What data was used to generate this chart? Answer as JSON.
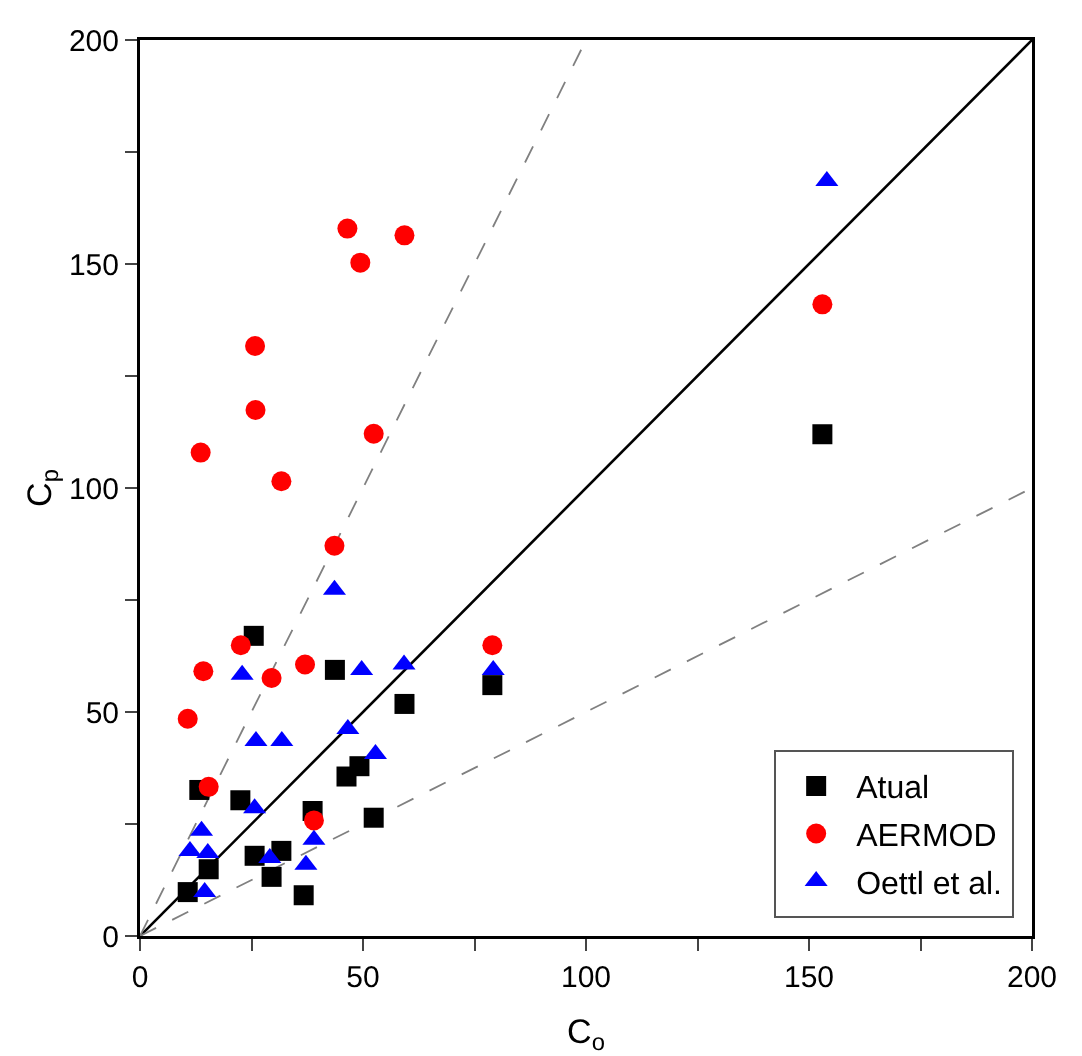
{
  "chart_data": {
    "type": "scatter",
    "xlabel": "C$_{o}$",
    "ylabel": "C$_{p}$",
    "xlim": [
      0,
      200
    ],
    "ylim": [
      0,
      200
    ],
    "xticks": [
      0,
      {
        "value": 25,
        "label": null
      },
      50,
      {
        "value": 75,
        "label": null
      },
      100,
      {
        "value": 125,
        "label": null
      },
      150,
      {
        "value": 175,
        "label": null
      },
      200
    ],
    "yticks": [
      0,
      {
        "value": 25,
        "label": null
      },
      50,
      {
        "value": 75,
        "label": null
      },
      100,
      {
        "value": 125,
        "label": null
      },
      150,
      {
        "value": 175,
        "label": null
      },
      200
    ],
    "grid": false,
    "legend": "bottom right",
    "series": [
      {
        "type": "line",
        "color": "#000000",
        "line_style": "solid",
        "marker": "none",
        "x": [
          0,
          200
        ],
        "values": [
          0,
          200
        ]
      },
      {
        "type": "line",
        "color": "#808080",
        "line_style": "dashed",
        "marker": "none",
        "x": [
          0,
          100
        ],
        "values": [
          0,
          200
        ]
      },
      {
        "type": "line",
        "color": "#808080",
        "line_style": "dashed",
        "marker": "none",
        "x": [
          0,
          200
        ],
        "values": [
          0,
          100
        ]
      },
      {
        "name": "Atual",
        "color": "#000000",
        "marker": "square",
        "x": [
          25.5,
          43.7,
          59.3,
          46.3,
          49.2,
          13.3,
          22.5,
          38.7,
          52.4,
          25.7,
          31.7,
          29.5,
          15.4,
          10.7,
          36.7,
          79,
          153
        ],
        "values": [
          67,
          59.4,
          51.8,
          35.6,
          37.9,
          32.6,
          30.3,
          27.9,
          26.4,
          17.9,
          19,
          13.2,
          14.9,
          9.8,
          9.1,
          56,
          112
        ]
      },
      {
        "name": "AERMOD",
        "color": "#ff0000",
        "marker": "circle",
        "x": [
          22.6,
          14.2,
          29.5,
          37,
          10.7,
          15.4,
          39,
          79,
          46.5,
          59.3,
          49.4,
          25.8,
          25.9,
          52.4,
          13.6,
          31.7,
          43.6,
          153
        ],
        "values": [
          64.9,
          59.1,
          57.6,
          60.6,
          48.5,
          33.3,
          25.8,
          64.9,
          157.9,
          156.4,
          150.3,
          131.7,
          117.4,
          112.1,
          107.9,
          101.5,
          87.1,
          141
        ]
      },
      {
        "name": "Oettl et al.",
        "color": "#0000ff",
        "marker": "triangle",
        "x": [
          43.6,
          22.9,
          49.7,
          59.2,
          79.2,
          26,
          31.8,
          46.6,
          52.8,
          25.7,
          13.8,
          11.2,
          15.2,
          39,
          29.1,
          37.2,
          14.5,
          154
        ],
        "values": [
          77.3,
          58.3,
          59.4,
          60.6,
          59.4,
          43.5,
          43.5,
          46.2,
          40.6,
          28.5,
          23.5,
          19,
          18.5,
          21.5,
          17.4,
          15.9,
          9.8,
          168.5
        ]
      }
    ]
  }
}
